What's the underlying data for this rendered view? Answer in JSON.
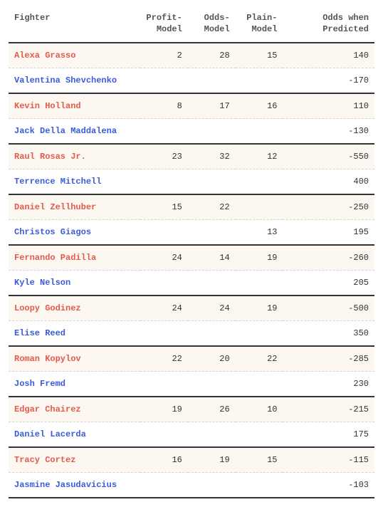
{
  "colors": {
    "red_text": "#e25b4b",
    "blue_text": "#3b5bdb",
    "red_row_bg": "#fdf7f2",
    "dashed_border": "#d5d5d5",
    "solid_border": "#333333",
    "header_text": "#555555",
    "background": "#ffffff"
  },
  "typography": {
    "font_family": "monospace",
    "body_fontsize_pt": 9,
    "header_fontweight": 600,
    "name_fontweight": 600
  },
  "table": {
    "columns": [
      {
        "key": "fighter",
        "label_line1": "Fighter",
        "label_line2": "",
        "align": "left",
        "width_pct": 36
      },
      {
        "key": "profit",
        "label_line1": "Profit-",
        "label_line2": "Model",
        "align": "right",
        "width_pct": 13
      },
      {
        "key": "odds",
        "label_line1": "Odds-",
        "label_line2": "Model",
        "align": "right",
        "width_pct": 13
      },
      {
        "key": "plain",
        "label_line1": "Plain-",
        "label_line2": "Model",
        "align": "right",
        "width_pct": 13
      },
      {
        "key": "owp",
        "label_line1": "Odds when",
        "label_line2": "Predicted",
        "align": "right",
        "width_pct": 25
      }
    ],
    "pairs": [
      {
        "red": {
          "fighter": "Alexa Grasso",
          "profit": "2",
          "odds": "28",
          "plain": "15",
          "owp": "140"
        },
        "blue": {
          "fighter": "Valentina Shevchenko",
          "profit": "",
          "odds": "",
          "plain": "",
          "owp": "-170"
        }
      },
      {
        "red": {
          "fighter": "Kevin Holland",
          "profit": "8",
          "odds": "17",
          "plain": "16",
          "owp": "110"
        },
        "blue": {
          "fighter": "Jack Della Maddalena",
          "profit": "",
          "odds": "",
          "plain": "",
          "owp": "-130"
        }
      },
      {
        "red": {
          "fighter": "Raul Rosas Jr.",
          "profit": "23",
          "odds": "32",
          "plain": "12",
          "owp": "-550"
        },
        "blue": {
          "fighter": "Terrence Mitchell",
          "profit": "",
          "odds": "",
          "plain": "",
          "owp": "400"
        }
      },
      {
        "red": {
          "fighter": "Daniel Zellhuber",
          "profit": "15",
          "odds": "22",
          "plain": "",
          "owp": "-250"
        },
        "blue": {
          "fighter": "Christos Giagos",
          "profit": "",
          "odds": "",
          "plain": "13",
          "owp": "195"
        }
      },
      {
        "red": {
          "fighter": "Fernando Padilla",
          "profit": "24",
          "odds": "14",
          "plain": "19",
          "owp": "-260"
        },
        "blue": {
          "fighter": "Kyle Nelson",
          "profit": "",
          "odds": "",
          "plain": "",
          "owp": "205"
        }
      },
      {
        "red": {
          "fighter": "Loopy Godinez",
          "profit": "24",
          "odds": "24",
          "plain": "19",
          "owp": "-500"
        },
        "blue": {
          "fighter": "Elise Reed",
          "profit": "",
          "odds": "",
          "plain": "",
          "owp": "350"
        }
      },
      {
        "red": {
          "fighter": "Roman Kopylov",
          "profit": "22",
          "odds": "20",
          "plain": "22",
          "owp": "-285"
        },
        "blue": {
          "fighter": "Josh Fremd",
          "profit": "",
          "odds": "",
          "plain": "",
          "owp": "230"
        }
      },
      {
        "red": {
          "fighter": "Edgar Chairez",
          "profit": "19",
          "odds": "26",
          "plain": "10",
          "owp": "-215"
        },
        "blue": {
          "fighter": "Daniel Lacerda",
          "profit": "",
          "odds": "",
          "plain": "",
          "owp": "175"
        }
      },
      {
        "red": {
          "fighter": "Tracy Cortez",
          "profit": "16",
          "odds": "19",
          "plain": "15",
          "owp": "-115"
        },
        "blue": {
          "fighter": "Jasmine Jasudavicius",
          "profit": "",
          "odds": "",
          "plain": "",
          "owp": "-103"
        }
      }
    ]
  }
}
